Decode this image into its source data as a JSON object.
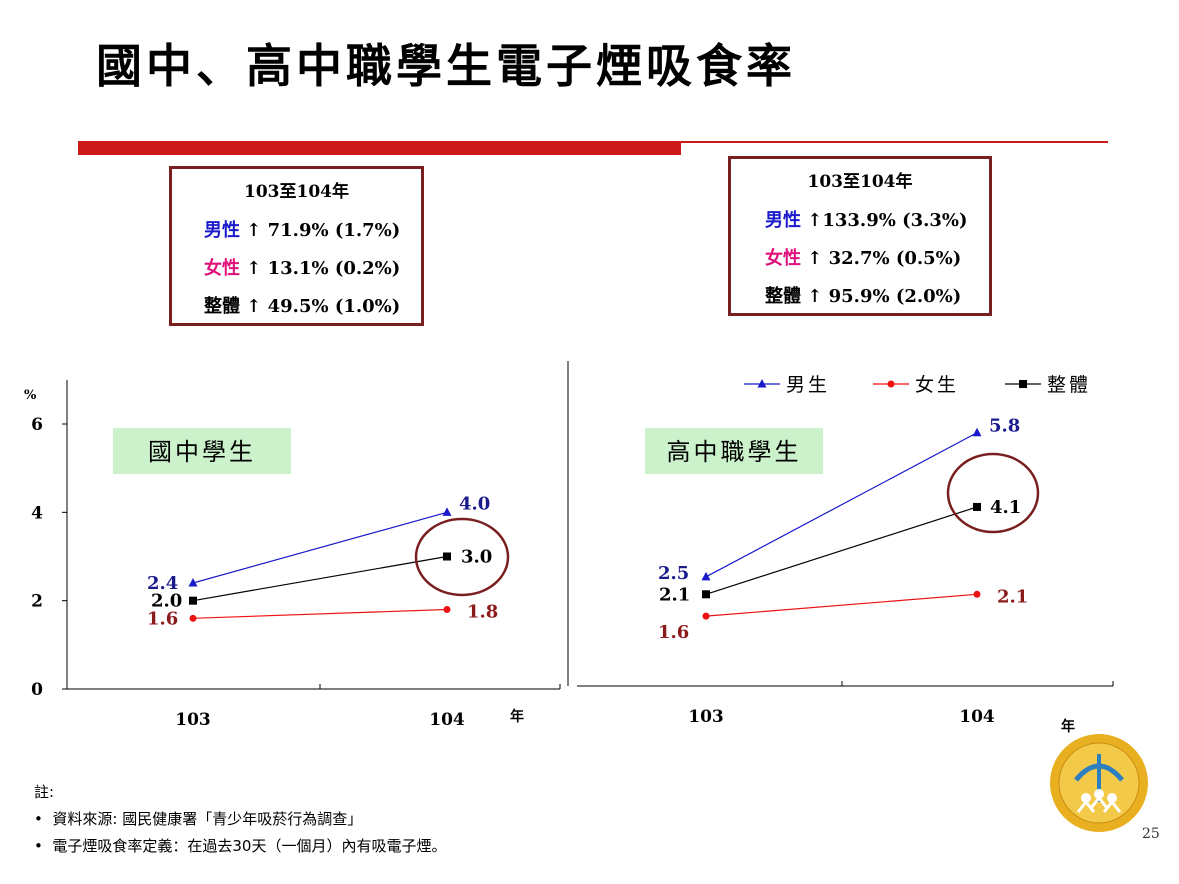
{
  "slide": {
    "title": "國中、高中職學生電子煙吸食率",
    "page_number": "25"
  },
  "summary_boxes": [
    {
      "heading": "103至104年",
      "rows": [
        {
          "label": "男性",
          "text": "↑ 71.9% (1.7%)",
          "color": "#1a1acc"
        },
        {
          "label": "女性",
          "text": "↑ 13.1% (0.2%)",
          "color": "#e0107a"
        },
        {
          "label": "整體",
          "text": "↑ 49.5% (1.0%)",
          "color": "#000000"
        }
      ]
    },
    {
      "heading": "103至104年",
      "rows": [
        {
          "label": "男性",
          "text": "↑133.9% (3.3%)",
          "color": "#1a1acc"
        },
        {
          "label": "女性",
          "text": "↑ 32.7% (0.5%)",
          "color": "#e0107a"
        },
        {
          "label": "整體",
          "text": "↑ 95.9% (2.0%)",
          "color": "#000000"
        }
      ]
    }
  ],
  "legend": [
    {
      "name": "男生",
      "color": "#1a1acc",
      "marker": "triangle"
    },
    {
      "name": "女生",
      "color": "#ee1111",
      "marker": "circle"
    },
    {
      "name": "整體",
      "color": "#000000",
      "marker": "square"
    }
  ],
  "chart_data": [
    {
      "type": "line",
      "title": "國中學生",
      "x": [
        "103",
        "104"
      ],
      "xlabel": "年",
      "ylabel": "%",
      "ylim": [
        0,
        6
      ],
      "yticks": [
        0,
        2,
        4,
        6
      ],
      "series": [
        {
          "name": "男生",
          "values": [
            2.4,
            4.0
          ],
          "labels": [
            "2.4",
            "4.0"
          ],
          "color": "#1a1acc",
          "label_color": "#1a1a8c",
          "marker": "triangle"
        },
        {
          "name": "女生",
          "values": [
            1.6,
            1.8
          ],
          "labels": [
            "1.6",
            "1.8"
          ],
          "color": "#ee1111",
          "label_color": "#8b1a1a",
          "marker": "circle"
        },
        {
          "name": "整體",
          "values": [
            2.0,
            3.0
          ],
          "labels": [
            "2.0",
            "3.0"
          ],
          "color": "#000000",
          "label_color": "#000000",
          "marker": "square"
        }
      ],
      "highlight": {
        "series": "整體",
        "index": 1
      }
    },
    {
      "type": "line",
      "title": "高中職學生",
      "x": [
        "103",
        "104"
      ],
      "xlabel": "年",
      "ylim": [
        0,
        6
      ],
      "series": [
        {
          "name": "男生",
          "values": [
            2.5,
            5.8
          ],
          "labels": [
            "2.5",
            "5.8"
          ],
          "color": "#1a1acc",
          "label_color": "#1a1a8c",
          "marker": "triangle"
        },
        {
          "name": "女生",
          "values": [
            1.6,
            2.1
          ],
          "labels": [
            "1.6",
            "2.1"
          ],
          "color": "#ee1111",
          "label_color": "#8b1a1a",
          "marker": "circle"
        },
        {
          "name": "整體",
          "values": [
            2.1,
            4.1
          ],
          "labels": [
            "2.1",
            "4.1"
          ],
          "color": "#000000",
          "label_color": "#000000",
          "marker": "square"
        }
      ],
      "highlight": {
        "series": "整體",
        "index": 1
      }
    }
  ],
  "notes": {
    "heading": "註:",
    "items": [
      "資料來源: 國民健康署「青少年吸菸行為調查」",
      "電子煙吸食率定義：在過去30天（一個月）內有吸電子煙。"
    ]
  },
  "logo": {
    "icon": "health-promotion-administration-logo",
    "colors": {
      "ring": "#e8b020",
      "inner": "#2e7fc0",
      "figure": "#ffffff"
    }
  }
}
